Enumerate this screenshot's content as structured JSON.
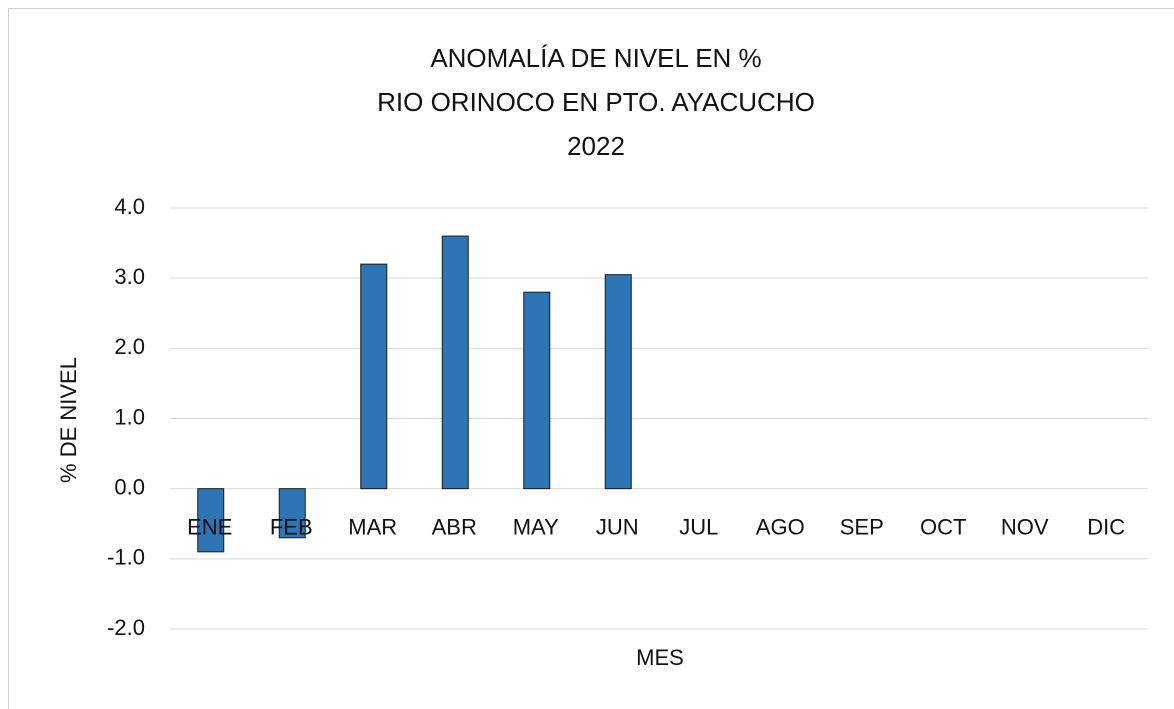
{
  "chart_data": {
    "type": "bar",
    "title": [
      "ANOMALÍA DE NIVEL EN %",
      "RIO ORINOCO EN PTO. AYACUCHO",
      "2022"
    ],
    "x_label": "MES",
    "y_label": "% DE NIVEL",
    "categories": [
      "ENE",
      "FEB",
      "MAR",
      "ABR",
      "MAY",
      "JUN",
      "JUL",
      "AGO",
      "SEP",
      "OCT",
      "NOV",
      "DIC"
    ],
    "values": [
      -0.9,
      -0.7,
      3.2,
      3.6,
      2.8,
      3.05,
      null,
      null,
      null,
      null,
      null,
      null
    ],
    "color": "#2e75b6",
    "ylim": [
      -2,
      4
    ],
    "yticks": [
      {
        "value": -2,
        "label": "-2.0"
      },
      {
        "value": -1,
        "label": "-1.0"
      },
      {
        "value": 0,
        "label": "0.0"
      },
      {
        "value": 1,
        "label": "1.0"
      },
      {
        "value": 2,
        "label": "2.0"
      },
      {
        "value": 3,
        "label": "3.0"
      },
      {
        "value": 4,
        "label": "4.0"
      }
    ],
    "grid": true
  }
}
